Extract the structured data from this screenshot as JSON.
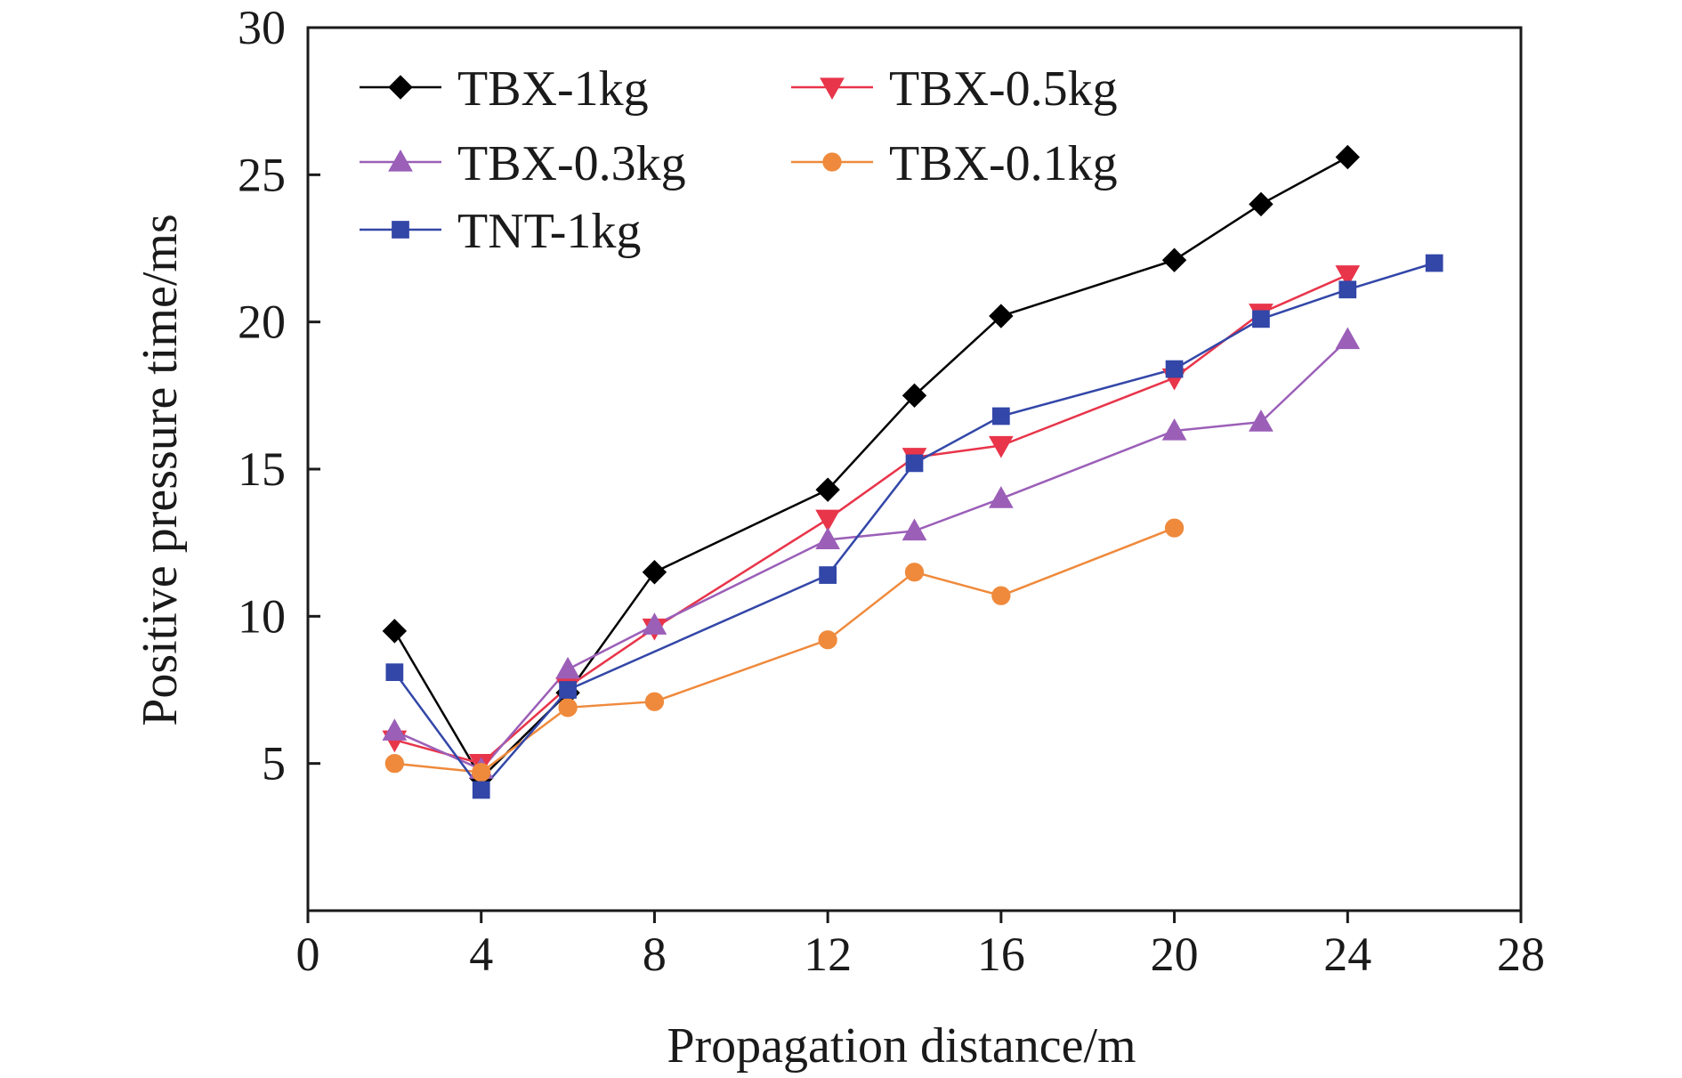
{
  "chart_data": {
    "type": "line",
    "xlabel": "Propagation distance/m",
    "ylabel": "Positive pressure time/ms",
    "xlim": [
      0,
      28
    ],
    "ylim": [
      0,
      30
    ],
    "xticks": [
      "0",
      "4",
      "8",
      "12",
      "16",
      "20",
      "24",
      "28"
    ],
    "yticks": [
      "5",
      "10",
      "15",
      "20",
      "25",
      "30"
    ],
    "grid": false,
    "legend_position": "top-left",
    "series": [
      {
        "name": "TBX-1kg",
        "color": "#000000",
        "marker": "diamond",
        "points": [
          [
            2,
            9.5
          ],
          [
            4,
            4.5
          ],
          [
            6,
            7.4
          ],
          [
            8,
            11.5
          ],
          [
            12,
            14.3
          ],
          [
            14,
            17.5
          ],
          [
            16,
            20.2
          ],
          [
            20,
            22.1
          ],
          [
            22,
            24.0
          ],
          [
            24,
            25.6
          ]
        ]
      },
      {
        "name": "TBX-0.5kg",
        "color": "#e8354a",
        "marker": "triangle-down",
        "points": [
          [
            2,
            5.8
          ],
          [
            4,
            5.0
          ],
          [
            6,
            7.6
          ],
          [
            8,
            9.6
          ],
          [
            12,
            13.3
          ],
          [
            14,
            15.4
          ],
          [
            16,
            15.8
          ],
          [
            20,
            18.1
          ],
          [
            22,
            20.3
          ],
          [
            24,
            21.6
          ]
        ]
      },
      {
        "name": "TBX-0.3kg",
        "color": "#9b5fb8",
        "marker": "triangle-up",
        "points": [
          [
            2,
            6.1
          ],
          [
            4,
            4.8
          ],
          [
            6,
            8.2
          ],
          [
            8,
            9.7
          ],
          [
            12,
            12.6
          ],
          [
            14,
            12.9
          ],
          [
            16,
            14.0
          ],
          [
            20,
            16.3
          ],
          [
            22,
            16.6
          ],
          [
            24,
            19.4
          ]
        ]
      },
      {
        "name": "TBX-0.1kg",
        "color": "#ef8a3c",
        "marker": "circle",
        "points": [
          [
            2,
            5.0
          ],
          [
            4,
            4.7
          ],
          [
            6,
            6.9
          ],
          [
            8,
            7.1
          ],
          [
            12,
            9.2
          ],
          [
            14,
            11.5
          ],
          [
            16,
            10.7
          ],
          [
            20,
            13.0
          ]
        ]
      },
      {
        "name": "TNT-1kg",
        "color": "#3347a8",
        "marker": "square",
        "points": [
          [
            2,
            8.1
          ],
          [
            4,
            4.1
          ],
          [
            6,
            7.5
          ],
          [
            12,
            11.4
          ],
          [
            14,
            15.2
          ],
          [
            16,
            16.8
          ],
          [
            20,
            18.4
          ],
          [
            22,
            20.1
          ],
          [
            24,
            21.1
          ],
          [
            26,
            22.0
          ]
        ]
      }
    ]
  }
}
